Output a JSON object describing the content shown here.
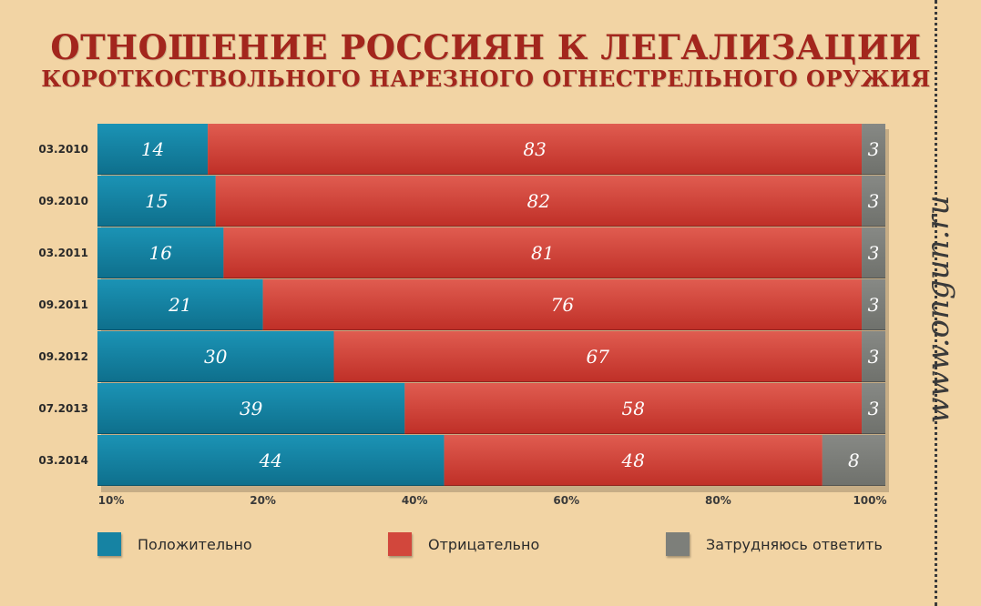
{
  "title": "ОТНОШЕНИЕ РОССИЯН К ЛЕГАЛИЗАЦИИ",
  "subtitle": "КОРОТКОСТВОЛЬНОГО НАРЕЗНОГО ОГНЕСТРЕЛЬНОГО ОРУЖИЯ",
  "watermark": "www.ongun.ru",
  "chart_data": {
    "type": "bar",
    "orientation": "horizontal",
    "stacked": true,
    "categories": [
      "03.2010",
      "09.2010",
      "03.2011",
      "09.2011",
      "09.2012",
      "07.2013",
      "03.2014"
    ],
    "series": [
      {
        "name": "Положительно",
        "color": "#1683a3",
        "values": [
          14,
          15,
          16,
          21,
          30,
          39,
          44
        ]
      },
      {
        "name": "Отрицательно",
        "color": "#d2473c",
        "values": [
          83,
          82,
          81,
          76,
          67,
          58,
          48
        ]
      },
      {
        "name": "Затрудняюсь ответить",
        "color": "#7d7f7a",
        "values": [
          3,
          3,
          3,
          3,
          3,
          3,
          8
        ]
      }
    ],
    "x_tick_labels": [
      "10%",
      "20%",
      "40%",
      "60%",
      "80%",
      "100%"
    ],
    "legend_position": "bottom",
    "grid": false
  }
}
